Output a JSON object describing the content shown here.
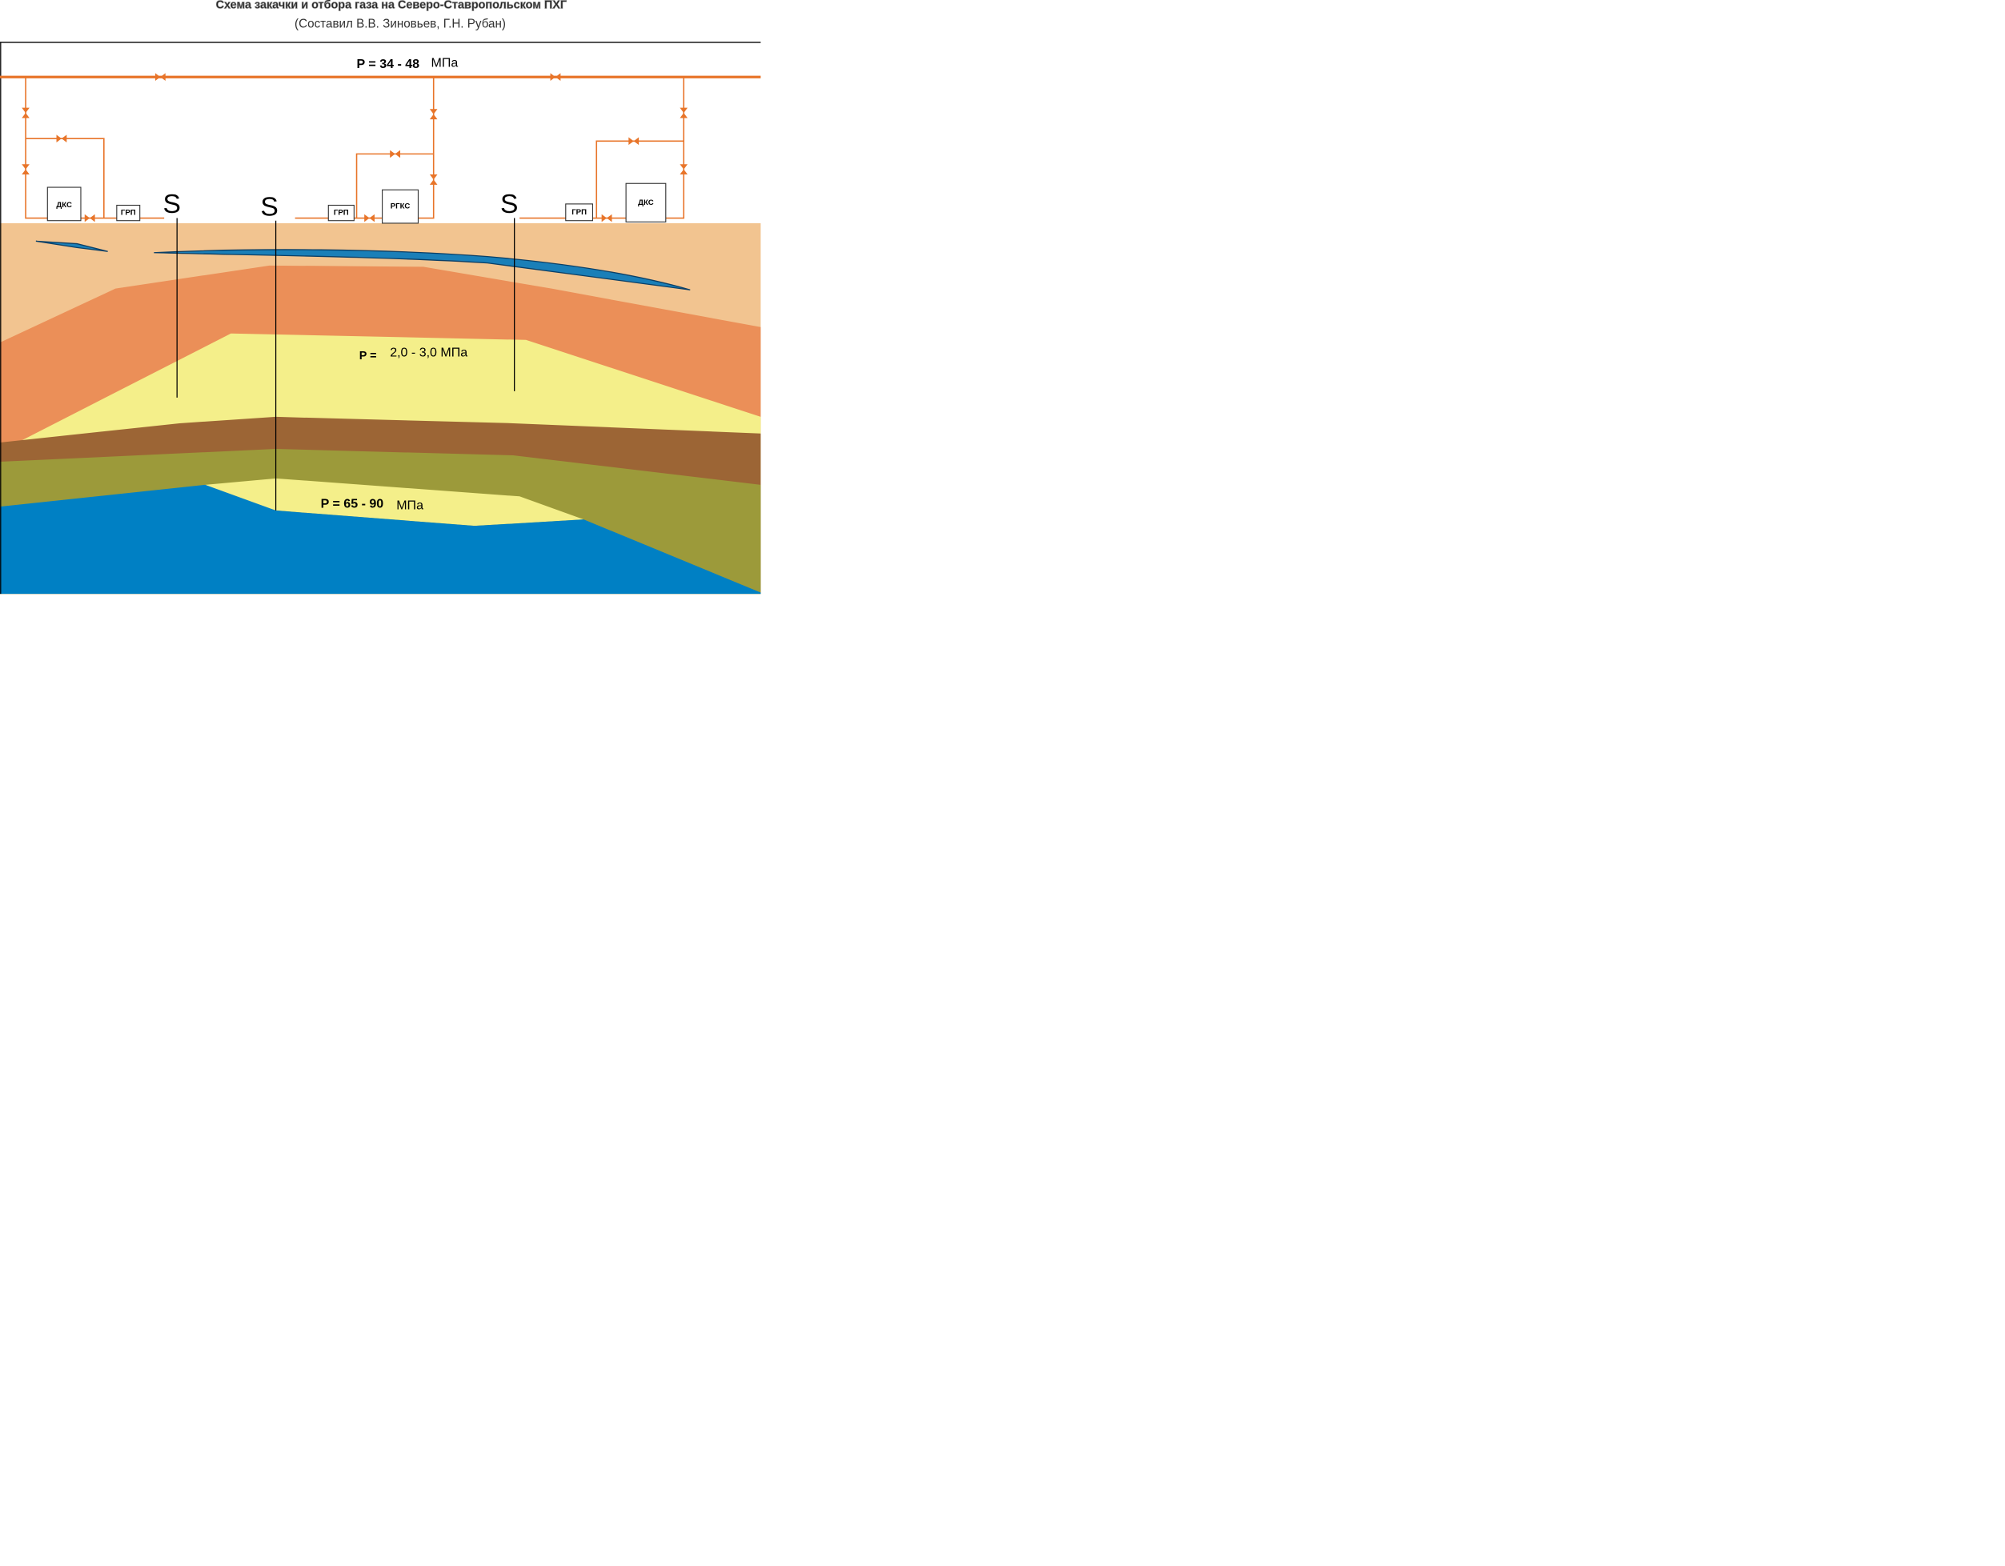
{
  "header": {
    "title": "Схема закачки и отбора газа на Северо-Ставропольском ПХГ",
    "subtitle": "(Составил В.В. Зиновьев, Г.Н. Рубан)"
  },
  "pressures": {
    "surface": {
      "label": "P = 34 - 48",
      "unit": "МПа"
    },
    "upper": {
      "label": "P =",
      "value": "2,0 - 3,0 МПа"
    },
    "lower": {
      "label": "P = 65 - 90",
      "unit": "МПа"
    }
  },
  "stations": [
    "ДКС",
    "ГРП",
    "ГРП",
    "РГКС",
    "ГРП",
    "ДКС"
  ],
  "wells": [
    "S",
    "S",
    "S"
  ]
}
